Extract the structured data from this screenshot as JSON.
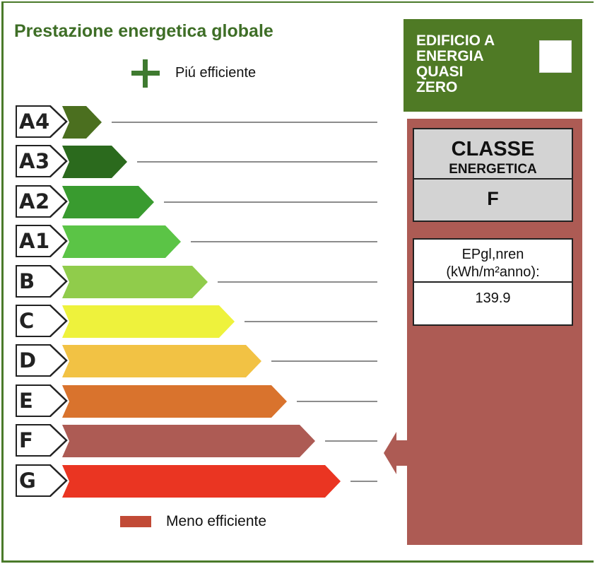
{
  "title": "Prestazione energetica globale",
  "legend": {
    "more_efficient": "Piú efficiente",
    "less_efficient": "Meno efficiente",
    "less_color": "#c14a36"
  },
  "classes": [
    {
      "label": "A4",
      "color": "#4b6f1f"
    },
    {
      "label": "A3",
      "color": "#2b6a1d"
    },
    {
      "label": "A2",
      "color": "#399b2f"
    },
    {
      "label": "A1",
      "color": "#5bc446"
    },
    {
      "label": "B",
      "color": "#90cc4b"
    },
    {
      "label": "C",
      "color": "#eef23c"
    },
    {
      "label": "D",
      "color": "#f2c244"
    },
    {
      "label": "E",
      "color": "#d9732d"
    },
    {
      "label": "F",
      "color": "#ad5b54"
    },
    {
      "label": "G",
      "color": "#ea3522"
    }
  ],
  "nzeb": {
    "text": "EDIFICIO A\nENERGIA\nQUASI\nZERO",
    "checked": false,
    "color": "#4f7a25"
  },
  "result": {
    "class_heading": "CLASSE",
    "class_subheading": "ENERGETICA",
    "class_value": "F",
    "indicator_name": "EPgl,nren",
    "indicator_unit": "(kWh/m²anno):",
    "indicator_value": "139.9",
    "panel_color": "#ad5b54"
  }
}
